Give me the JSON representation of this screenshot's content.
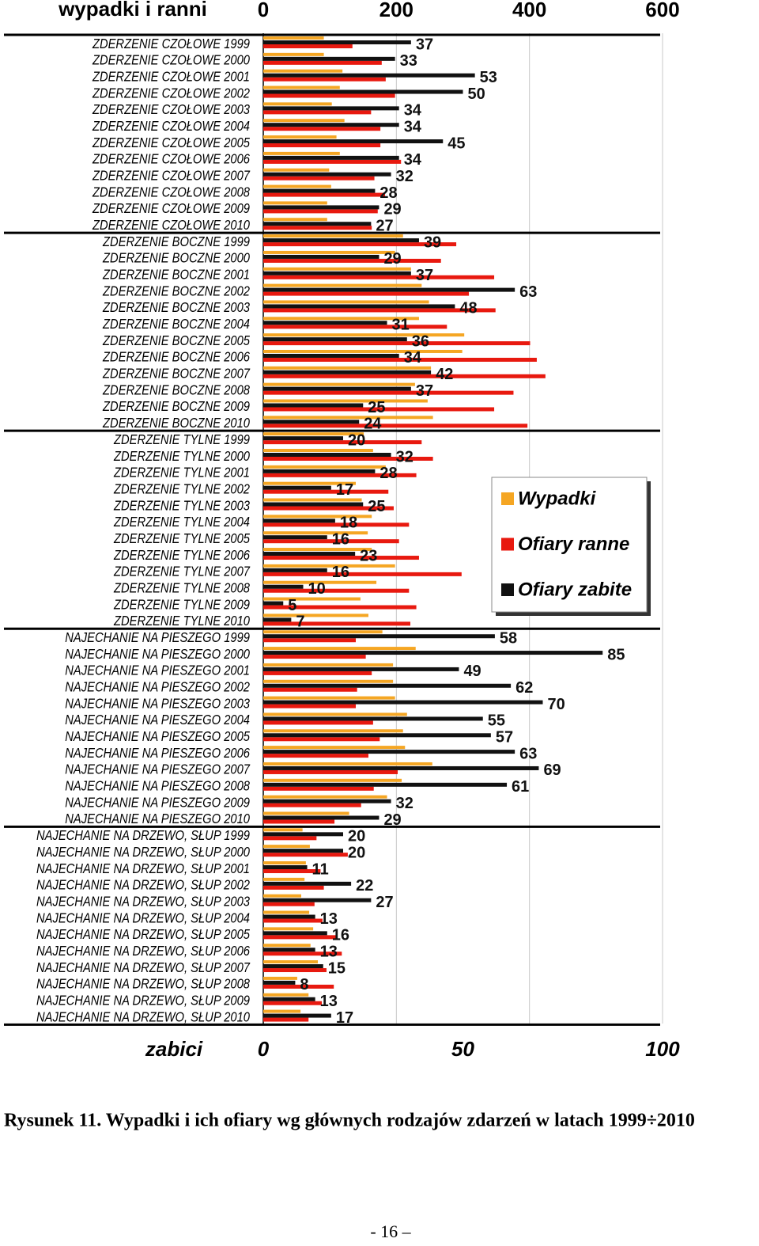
{
  "chart_data": {
    "type": "hbar",
    "orientation": "horizontal",
    "x_label": "wypadki i ranni",
    "x2_label": "zabici",
    "caption": "Rysunek 11. Wypadki i ich ofiary wg głównych rodzajów zdarzeń w latach 1999÷2010",
    "page_number": "- 16 –",
    "xlim": [
      0,
      600
    ],
    "xticks": [
      0,
      200,
      400,
      600
    ],
    "x2lim": [
      0,
      100
    ],
    "x2ticks": [
      0,
      50,
      100
    ],
    "grid": true,
    "legend": "right",
    "categories": [
      "ZDERZENIE CZOŁOWE 1999",
      "ZDERZENIE CZOŁOWE 2000",
      "ZDERZENIE CZOŁOWE 2001",
      "ZDERZENIE CZOŁOWE 2002",
      "ZDERZENIE CZOŁOWE 2003",
      "ZDERZENIE CZOŁOWE 2004",
      "ZDERZENIE CZOŁOWE 2005",
      "ZDERZENIE CZOŁOWE 2006",
      "ZDERZENIE CZOŁOWE 2007",
      "ZDERZENIE CZOŁOWE 2008",
      "ZDERZENIE CZOŁOWE 2009",
      "ZDERZENIE CZOŁOWE 2010",
      "ZDERZENIE BOCZNE 1999",
      "ZDERZENIE BOCZNE 2000",
      "ZDERZENIE BOCZNE 2001",
      "ZDERZENIE BOCZNE 2002",
      "ZDERZENIE BOCZNE 2003",
      "ZDERZENIE BOCZNE 2004",
      "ZDERZENIE BOCZNE 2005",
      "ZDERZENIE BOCZNE 2006",
      "ZDERZENIE BOCZNE 2007",
      "ZDERZENIE BOCZNE 2008",
      "ZDERZENIE BOCZNE 2009",
      "ZDERZENIE BOCZNE 2010",
      "ZDERZENIE TYLNE 1999",
      "ZDERZENIE TYLNE 2000",
      "ZDERZENIE TYLNE 2001",
      "ZDERZENIE TYLNE 2002",
      "ZDERZENIE TYLNE 2003",
      "ZDERZENIE TYLNE 2004",
      "ZDERZENIE TYLNE 2005",
      "ZDERZENIE TYLNE 2006",
      "ZDERZENIE TYLNE 2007",
      "ZDERZENIE TYLNE 2008",
      "ZDERZENIE TYLNE 2009",
      "ZDERZENIE TYLNE 2010",
      "NAJECHANIE NA PIESZEGO 1999",
      "NAJECHANIE NA PIESZEGO 2000",
      "NAJECHANIE NA PIESZEGO 2001",
      "NAJECHANIE NA PIESZEGO 2002",
      "NAJECHANIE NA PIESZEGO 2003",
      "NAJECHANIE NA PIESZEGO 2004",
      "NAJECHANIE NA PIESZEGO 2005",
      "NAJECHANIE NA PIESZEGO 2006",
      "NAJECHANIE NA PIESZEGO 2007",
      "NAJECHANIE NA PIESZEGO 2008",
      "NAJECHANIE NA PIESZEGO 2009",
      "NAJECHANIE NA PIESZEGO 2010",
      "NAJECHANIE NA DRZEWO, SŁUP 1999",
      "NAJECHANIE NA DRZEWO, SŁUP 2000",
      "NAJECHANIE NA DRZEWO, SŁUP 2001",
      "NAJECHANIE NA DRZEWO, SŁUP 2002",
      "NAJECHANIE NA DRZEWO, SŁUP 2003",
      "NAJECHANIE NA DRZEWO, SŁUP 2004",
      "NAJECHANIE NA DRZEWO, SŁUP 2005",
      "NAJECHANIE NA DRZEWO, SŁUP 2006",
      "NAJECHANIE NA DRZEWO, SŁUP 2007",
      "NAJECHANIE NA DRZEWO, SŁUP 2008",
      "NAJECHANIE NA DRZEWO, SŁUP 2009",
      "NAJECHANIE NA DRZEWO, SŁUP 2010"
    ],
    "series": [
      {
        "name": "Wypadki",
        "color": "#f5a623",
        "values": [
          91,
          91,
          119,
          115,
          103,
          122,
          110,
          115,
          99,
          102,
          96,
          96,
          210,
          198,
          222,
          238,
          249,
          234,
          302,
          299,
          252,
          228,
          247,
          255,
          151,
          165,
          184,
          139,
          148,
          163,
          157,
          163,
          198,
          170,
          146,
          158,
          179,
          229,
          195,
          195,
          198,
          216,
          210,
          213,
          254,
          208,
          186,
          129,
          59,
          70,
          64,
          62,
          57,
          69,
          75,
          71,
          82,
          51,
          68,
          56
        ]
      },
      {
        "name": "Ofiary ranne",
        "color": "#e8190f",
        "values": [
          134,
          178,
          184,
          198,
          162,
          176,
          176,
          207,
          167,
          183,
          172,
          163,
          290,
          267,
          347,
          309,
          349,
          276,
          401,
          411,
          424,
          376,
          347,
          397,
          238,
          255,
          230,
          188,
          196,
          219,
          204,
          234,
          298,
          219,
          230,
          221,
          139,
          154,
          163,
          141,
          139,
          165,
          175,
          158,
          202,
          166,
          147,
          107,
          80,
          127,
          86,
          91,
          77,
          89,
          110,
          118,
          95,
          106,
          88,
          68
        ]
      },
      {
        "name": "Ofiary zabite",
        "color": "#111111",
        "axis": "x2",
        "values": [
          37,
          33,
          53,
          50,
          34,
          34,
          45,
          34,
          32,
          28,
          29,
          27,
          39,
          29,
          37,
          63,
          48,
          31,
          36,
          34,
          42,
          37,
          25,
          24,
          20,
          32,
          28,
          17,
          25,
          18,
          16,
          23,
          16,
          10,
          5,
          7,
          58,
          85,
          49,
          62,
          70,
          55,
          57,
          63,
          69,
          61,
          32,
          29,
          20,
          20,
          11,
          22,
          27,
          13,
          16,
          13,
          15,
          8,
          13,
          17
        ]
      }
    ]
  }
}
